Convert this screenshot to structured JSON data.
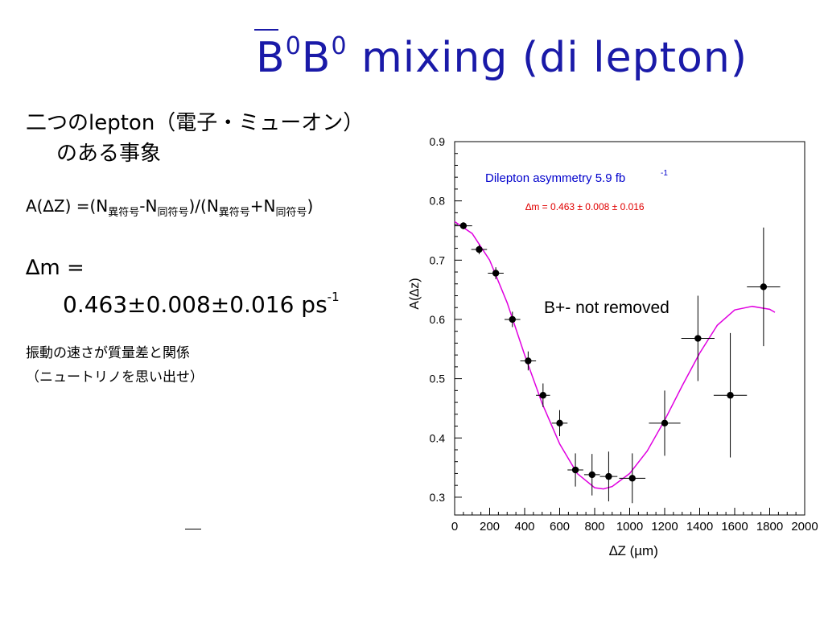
{
  "slide": {
    "title": {
      "text_a": "B",
      "sup_a": "0",
      "text_b": "B",
      "sup_b": "0",
      "text_c": " mixing (di lepton)"
    },
    "line1": "二つのlepton（電子・ミューオン）",
    "line2": "のある事象",
    "asym": {
      "a": "A(∆Z) =(N",
      "s1": "異符号",
      "b": "-N",
      "s2": "同符号",
      "c": ")/(N",
      "s3": "異符号",
      "d": "+N",
      "s4": "同符号",
      "e": ")"
    },
    "dm_label": "∆m =",
    "dm_value": "0.463±0.008±0.016 ps",
    "dm_unit_sup": "-1",
    "note1": "振動の速さが質量差と関係",
    "note2": "（ニュートリノを思い出せ）"
  },
  "chart_data": {
    "type": "scatter",
    "title": "Dilepton asymmetry  5.9 fb",
    "title_sup": "-1",
    "fit_label": "∆m = 0.463 ± 0.008 ± 0.016",
    "annotation": "B+- not removed",
    "xlabel": "∆Z (µm)",
    "ylabel": "A(∆z)",
    "xlim": [
      0,
      2000
    ],
    "ylim": [
      0.27,
      0.9
    ],
    "xticks": [
      "0",
      "200",
      "400",
      "600",
      "800",
      "1000",
      "1200",
      "1400",
      "1600",
      "1800",
      "2000"
    ],
    "yticks": [
      "0.3",
      "0.4",
      "0.5",
      "0.6",
      "0.7",
      "0.8",
      "0.9"
    ],
    "series": [
      {
        "x": [
          50,
          140,
          235,
          330,
          420,
          505,
          600,
          690,
          785,
          880,
          1015,
          1200,
          1390,
          1575,
          1765
        ],
        "y": [
          0.758,
          0.718,
          0.678,
          0.6,
          0.53,
          0.472,
          0.425,
          0.346,
          0.338,
          0.335,
          0.332,
          0.425,
          0.568,
          0.472,
          0.655
        ],
        "xerr": [
          50,
          45,
          45,
          45,
          45,
          40,
          45,
          45,
          45,
          50,
          75,
          90,
          95,
          95,
          95
        ],
        "yerr": [
          0.006,
          0.008,
          0.01,
          0.013,
          0.016,
          0.02,
          0.022,
          0.028,
          0.035,
          0.042,
          0.042,
          0.055,
          0.072,
          0.105,
          0.1
        ]
      }
    ],
    "fit": {
      "x": [
        0,
        100,
        200,
        300,
        400,
        500,
        600,
        700,
        800,
        850,
        900,
        1000,
        1100,
        1200,
        1300,
        1400,
        1500,
        1600,
        1700,
        1800,
        1830
      ],
      "y": [
        0.765,
        0.745,
        0.7,
        0.628,
        0.54,
        0.458,
        0.39,
        0.34,
        0.316,
        0.314,
        0.318,
        0.34,
        0.378,
        0.43,
        0.488,
        0.543,
        0.59,
        0.616,
        0.622,
        0.617,
        0.612
      ]
    },
    "colors": {
      "fit": "#e000e0",
      "title": "#0000cc",
      "fit_label": "#e00000"
    }
  }
}
